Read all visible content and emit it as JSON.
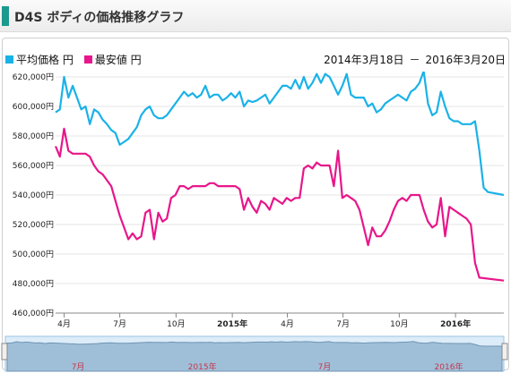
{
  "header": {
    "title": "D4S ボディの価格推移グラフ",
    "accent_color": "#1a9a8e"
  },
  "legend": {
    "items": [
      {
        "label": "平均価格 円",
        "color": "#1ab2e8"
      },
      {
        "label": "最安値 円",
        "color": "#e8168a"
      }
    ]
  },
  "date_range": {
    "start": "2014年3月18日",
    "separator": "－",
    "end": "2016年3月20日"
  },
  "chart_data": {
    "type": "line",
    "x_start": "2014-03-18",
    "x_end": "2016-03-20",
    "ylim": [
      460000,
      620000
    ],
    "y_ticks": [
      {
        "value": 460000,
        "label": "460,000円"
      },
      {
        "value": 480000,
        "label": "480,000円"
      },
      {
        "value": 500000,
        "label": "500,000円"
      },
      {
        "value": 520000,
        "label": "520,000円"
      },
      {
        "value": 540000,
        "label": "540,000円"
      },
      {
        "value": 560000,
        "label": "560,000円"
      },
      {
        "value": 580000,
        "label": "580,000円"
      },
      {
        "value": 600000,
        "label": "600,000円"
      },
      {
        "value": 620000,
        "label": "620,000円"
      }
    ],
    "x_ticks": [
      {
        "date": "2014-04-01",
        "label": "4月",
        "bold": false
      },
      {
        "date": "2014-07-01",
        "label": "7月",
        "bold": false
      },
      {
        "date": "2014-10-01",
        "label": "10月",
        "bold": false
      },
      {
        "date": "2015-01-01",
        "label": "2015年",
        "bold": true
      },
      {
        "date": "2015-04-01",
        "label": "4月",
        "bold": false
      },
      {
        "date": "2015-07-01",
        "label": "7月",
        "bold": false
      },
      {
        "date": "2015-10-01",
        "label": "10月",
        "bold": false
      },
      {
        "date": "2016-01-01",
        "label": "2016年",
        "bold": true
      }
    ],
    "series": [
      {
        "name": "平均価格 円",
        "color": "#1ab2e8",
        "points": [
          [
            "2014-03-18",
            596000
          ],
          [
            "2014-03-25",
            598000
          ],
          [
            "2014-04-01",
            620000
          ],
          [
            "2014-04-08",
            606000
          ],
          [
            "2014-04-15",
            614000
          ],
          [
            "2014-04-22",
            606000
          ],
          [
            "2014-04-29",
            598000
          ],
          [
            "2014-05-06",
            600000
          ],
          [
            "2014-05-13",
            588000
          ],
          [
            "2014-05-20",
            598000
          ],
          [
            "2014-05-27",
            596000
          ],
          [
            "2014-06-03",
            591000
          ],
          [
            "2014-06-10",
            588000
          ],
          [
            "2014-06-17",
            584000
          ],
          [
            "2014-06-24",
            582000
          ],
          [
            "2014-07-01",
            574000
          ],
          [
            "2014-07-08",
            576000
          ],
          [
            "2014-07-15",
            578000
          ],
          [
            "2014-07-22",
            582000
          ],
          [
            "2014-07-29",
            586000
          ],
          [
            "2014-08-05",
            594000
          ],
          [
            "2014-08-12",
            598000
          ],
          [
            "2014-08-19",
            600000
          ],
          [
            "2014-08-26",
            594000
          ],
          [
            "2014-09-02",
            592000
          ],
          [
            "2014-09-09",
            592000
          ],
          [
            "2014-09-16",
            594000
          ],
          [
            "2014-09-23",
            598000
          ],
          [
            "2014-09-30",
            602000
          ],
          [
            "2014-10-07",
            606000
          ],
          [
            "2014-10-14",
            610000
          ],
          [
            "2014-10-21",
            607000
          ],
          [
            "2014-10-28",
            609000
          ],
          [
            "2014-11-04",
            606000
          ],
          [
            "2014-11-11",
            608000
          ],
          [
            "2014-11-18",
            614000
          ],
          [
            "2014-11-25",
            606000
          ],
          [
            "2014-12-02",
            608000
          ],
          [
            "2014-12-09",
            608000
          ],
          [
            "2014-12-16",
            604000
          ],
          [
            "2014-12-23",
            606000
          ],
          [
            "2014-12-30",
            609000
          ],
          [
            "2015-01-06",
            606000
          ],
          [
            "2015-01-13",
            610000
          ],
          [
            "2015-01-20",
            600000
          ],
          [
            "2015-01-27",
            604000
          ],
          [
            "2015-02-03",
            603000
          ],
          [
            "2015-02-10",
            604000
          ],
          [
            "2015-02-17",
            606000
          ],
          [
            "2015-02-24",
            608000
          ],
          [
            "2015-03-03",
            602000
          ],
          [
            "2015-03-10",
            606000
          ],
          [
            "2015-03-17",
            610000
          ],
          [
            "2015-03-24",
            614000
          ],
          [
            "2015-03-31",
            614000
          ],
          [
            "2015-04-07",
            612000
          ],
          [
            "2015-04-14",
            618000
          ],
          [
            "2015-04-21",
            612000
          ],
          [
            "2015-04-28",
            620000
          ],
          [
            "2015-05-05",
            612000
          ],
          [
            "2015-05-12",
            616000
          ],
          [
            "2015-05-19",
            622000
          ],
          [
            "2015-05-26",
            616000
          ],
          [
            "2015-06-02",
            622000
          ],
          [
            "2015-06-09",
            620000
          ],
          [
            "2015-06-16",
            614000
          ],
          [
            "2015-06-23",
            608000
          ],
          [
            "2015-06-30",
            614000
          ],
          [
            "2015-07-07",
            622000
          ],
          [
            "2015-07-14",
            608000
          ],
          [
            "2015-07-21",
            606000
          ],
          [
            "2015-07-28",
            606000
          ],
          [
            "2015-08-04",
            606000
          ],
          [
            "2015-08-11",
            600000
          ],
          [
            "2015-08-18",
            602000
          ],
          [
            "2015-08-25",
            596000
          ],
          [
            "2015-09-01",
            598000
          ],
          [
            "2015-09-08",
            602000
          ],
          [
            "2015-09-15",
            604000
          ],
          [
            "2015-09-22",
            606000
          ],
          [
            "2015-09-29",
            608000
          ],
          [
            "2015-10-06",
            606000
          ],
          [
            "2015-10-13",
            604000
          ],
          [
            "2015-10-20",
            610000
          ],
          [
            "2015-10-27",
            612000
          ],
          [
            "2015-11-03",
            616000
          ],
          [
            "2015-11-10",
            624000
          ],
          [
            "2015-11-17",
            602000
          ],
          [
            "2015-11-24",
            594000
          ],
          [
            "2015-12-01",
            596000
          ],
          [
            "2015-12-08",
            610000
          ],
          [
            "2015-12-15",
            600000
          ],
          [
            "2015-12-22",
            592000
          ],
          [
            "2015-12-29",
            590000
          ],
          [
            "2016-01-05",
            590000
          ],
          [
            "2016-01-12",
            588000
          ],
          [
            "2016-01-19",
            588000
          ],
          [
            "2016-01-26",
            588000
          ],
          [
            "2016-02-02",
            590000
          ],
          [
            "2016-02-09",
            570000
          ],
          [
            "2016-02-16",
            545000
          ],
          [
            "2016-02-23",
            542000
          ],
          [
            "2016-03-20",
            540000
          ]
        ]
      },
      {
        "name": "最安値 円",
        "color": "#e8168a",
        "points": [
          [
            "2014-03-18",
            573000
          ],
          [
            "2014-03-25",
            566000
          ],
          [
            "2014-04-01",
            585000
          ],
          [
            "2014-04-08",
            570000
          ],
          [
            "2014-04-15",
            568000
          ],
          [
            "2014-04-22",
            568000
          ],
          [
            "2014-04-29",
            568000
          ],
          [
            "2014-05-06",
            568000
          ],
          [
            "2014-05-13",
            566000
          ],
          [
            "2014-05-20",
            560000
          ],
          [
            "2014-05-27",
            556000
          ],
          [
            "2014-06-03",
            554000
          ],
          [
            "2014-06-10",
            550000
          ],
          [
            "2014-06-17",
            546000
          ],
          [
            "2014-06-24",
            536000
          ],
          [
            "2014-07-01",
            526000
          ],
          [
            "2014-07-08",
            518000
          ],
          [
            "2014-07-15",
            510000
          ],
          [
            "2014-07-22",
            514000
          ],
          [
            "2014-07-29",
            510000
          ],
          [
            "2014-08-05",
            512000
          ],
          [
            "2014-08-12",
            528000
          ],
          [
            "2014-08-19",
            530000
          ],
          [
            "2014-08-26",
            510000
          ],
          [
            "2014-09-02",
            528000
          ],
          [
            "2014-09-09",
            522000
          ],
          [
            "2014-09-16",
            524000
          ],
          [
            "2014-09-23",
            538000
          ],
          [
            "2014-09-30",
            540000
          ],
          [
            "2014-10-07",
            546000
          ],
          [
            "2014-10-14",
            546000
          ],
          [
            "2014-10-21",
            544000
          ],
          [
            "2014-10-28",
            546000
          ],
          [
            "2014-11-04",
            546000
          ],
          [
            "2014-11-11",
            546000
          ],
          [
            "2014-11-18",
            546000
          ],
          [
            "2014-11-25",
            548000
          ],
          [
            "2014-12-02",
            548000
          ],
          [
            "2014-12-09",
            546000
          ],
          [
            "2014-12-16",
            546000
          ],
          [
            "2014-12-23",
            546000
          ],
          [
            "2014-12-30",
            546000
          ],
          [
            "2015-01-06",
            546000
          ],
          [
            "2015-01-13",
            544000
          ],
          [
            "2015-01-20",
            530000
          ],
          [
            "2015-01-27",
            538000
          ],
          [
            "2015-02-03",
            532000
          ],
          [
            "2015-02-10",
            528000
          ],
          [
            "2015-02-17",
            536000
          ],
          [
            "2015-02-24",
            534000
          ],
          [
            "2015-03-03",
            530000
          ],
          [
            "2015-03-10",
            538000
          ],
          [
            "2015-03-17",
            536000
          ],
          [
            "2015-03-24",
            534000
          ],
          [
            "2015-03-31",
            538000
          ],
          [
            "2015-04-07",
            536000
          ],
          [
            "2015-04-14",
            538000
          ],
          [
            "2015-04-21",
            538000
          ],
          [
            "2015-04-28",
            558000
          ],
          [
            "2015-05-05",
            560000
          ],
          [
            "2015-05-12",
            558000
          ],
          [
            "2015-05-19",
            562000
          ],
          [
            "2015-05-26",
            560000
          ],
          [
            "2015-06-02",
            560000
          ],
          [
            "2015-06-09",
            560000
          ],
          [
            "2015-06-16",
            546000
          ],
          [
            "2015-06-23",
            570000
          ],
          [
            "2015-06-30",
            538000
          ],
          [
            "2015-07-07",
            540000
          ],
          [
            "2015-07-14",
            538000
          ],
          [
            "2015-07-21",
            536000
          ],
          [
            "2015-07-28",
            530000
          ],
          [
            "2015-08-04",
            518000
          ],
          [
            "2015-08-11",
            506000
          ],
          [
            "2015-08-18",
            518000
          ],
          [
            "2015-08-25",
            512000
          ],
          [
            "2015-09-01",
            512000
          ],
          [
            "2015-09-08",
            516000
          ],
          [
            "2015-09-15",
            522000
          ],
          [
            "2015-09-22",
            530000
          ],
          [
            "2015-09-29",
            536000
          ],
          [
            "2015-10-06",
            538000
          ],
          [
            "2015-10-13",
            536000
          ],
          [
            "2015-10-20",
            540000
          ],
          [
            "2015-10-27",
            540000
          ],
          [
            "2015-11-03",
            540000
          ],
          [
            "2015-11-10",
            530000
          ],
          [
            "2015-11-17",
            522000
          ],
          [
            "2015-11-24",
            518000
          ],
          [
            "2015-12-01",
            520000
          ],
          [
            "2015-12-08",
            538000
          ],
          [
            "2015-12-15",
            512000
          ],
          [
            "2015-12-22",
            532000
          ],
          [
            "2015-12-29",
            530000
          ],
          [
            "2016-01-05",
            528000
          ],
          [
            "2016-01-12",
            526000
          ],
          [
            "2016-01-19",
            524000
          ],
          [
            "2016-01-26",
            520000
          ],
          [
            "2016-02-02",
            494000
          ],
          [
            "2016-02-09",
            484000
          ],
          [
            "2016-03-20",
            482000
          ]
        ]
      }
    ],
    "navigator": {
      "labels": [
        {
          "date": "2014-07-01",
          "label": "7月"
        },
        {
          "date": "2015-01-01",
          "label": "2015年"
        },
        {
          "date": "2015-07-01",
          "label": "7月"
        },
        {
          "date": "2016-01-01",
          "label": "2016年"
        }
      ]
    }
  }
}
